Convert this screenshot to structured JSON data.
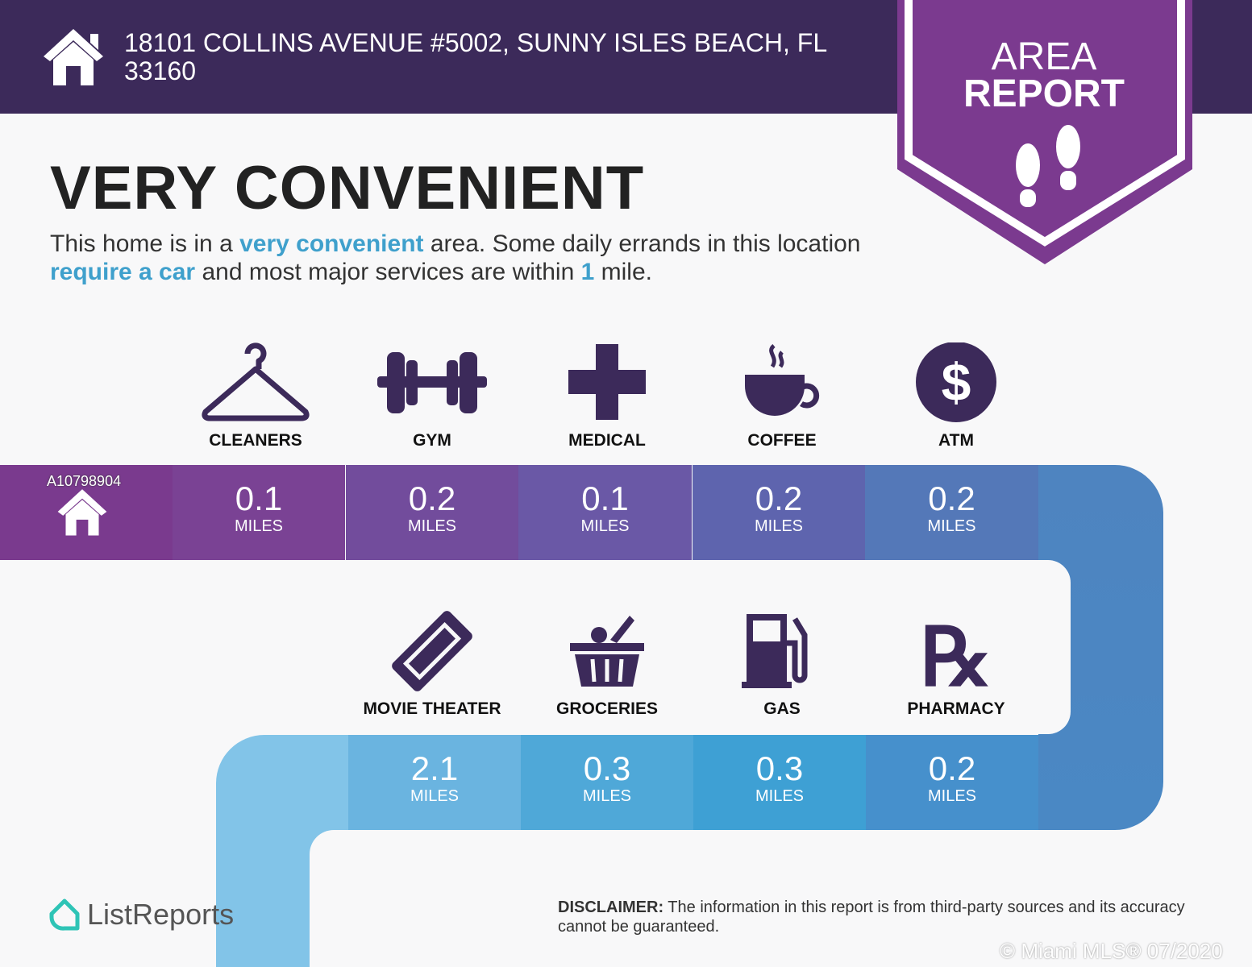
{
  "header": {
    "address": "18101 COLLINS AVENUE #5002, SUNNY ISLES BEACH, FL 33160",
    "badge_line1": "AREA",
    "badge_line2": "REPORT"
  },
  "summary": {
    "headline": "VERY CONVENIENT",
    "desc_1": "This home is in a ",
    "desc_hl1": "very convenient",
    "desc_2": " area. Some daily errands in this location ",
    "desc_hl2": "require a car",
    "desc_3": " and most major services are within ",
    "desc_hl3": "1",
    "desc_4": " mile."
  },
  "listing_id": "A10798904",
  "unit": "MILES",
  "row1": [
    {
      "label": "CLEANERS",
      "value": "0.1",
      "icon": "hanger-icon"
    },
    {
      "label": "GYM",
      "value": "0.2",
      "icon": "dumbbell-icon"
    },
    {
      "label": "MEDICAL",
      "value": "0.1",
      "icon": "medical-cross-icon"
    },
    {
      "label": "COFFEE",
      "value": "0.2",
      "icon": "coffee-cup-icon"
    },
    {
      "label": "ATM",
      "value": "0.2",
      "icon": "dollar-icon"
    }
  ],
  "row2": [
    {
      "label": "MOVIE THEATER",
      "value": "2.1",
      "icon": "ticket-icon"
    },
    {
      "label": "GROCERIES",
      "value": "0.3",
      "icon": "basket-icon"
    },
    {
      "label": "GAS",
      "value": "0.3",
      "icon": "gas-pump-icon"
    },
    {
      "label": "PHARMACY",
      "value": "0.2",
      "icon": "rx-icon"
    }
  ],
  "colors": {
    "header": "#3c2a5a",
    "badge": "#7b3a8f",
    "icon": "#3c2a5a",
    "highlight": "#3fa0cc"
  },
  "footer": {
    "brand": "ListReports",
    "disclaimer_bold": "DISCLAIMER:",
    "disclaimer": " The information in this report is from third-party sources and its accuracy cannot be guaranteed.",
    "copyright": "© Miami MLS® 07/2020"
  }
}
